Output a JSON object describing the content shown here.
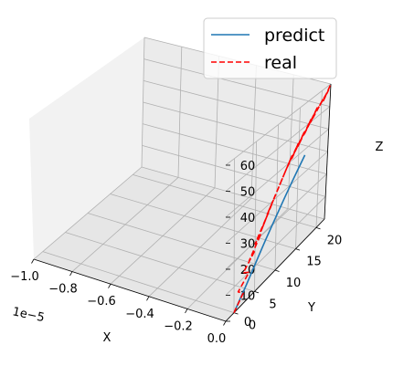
{
  "chart_data": {
    "type": "line",
    "projection": "3d",
    "title": "",
    "xlabel": "X",
    "ylabel": "Y",
    "zlabel": "Z",
    "x_offset_text": "1e−5",
    "xlim": [
      -1.0,
      0.0
    ],
    "ylim": [
      -2,
      22
    ],
    "zlim": [
      0,
      60
    ],
    "xticks": [
      "−1.0",
      "−0.8",
      "−0.6",
      "−0.4",
      "−0.2",
      "0.0"
    ],
    "yticks": [
      "0",
      "5",
      "10",
      "15",
      "20"
    ],
    "zticks": [
      "0",
      "10",
      "20",
      "30",
      "40",
      "50",
      "60"
    ],
    "legend": {
      "position": "upper right"
    },
    "series": [
      {
        "name": "predict",
        "color": "#1f77b4",
        "style": "solid",
        "x": [
          0.0,
          0.0,
          0.0,
          0.0,
          0.0,
          0.0,
          0.0,
          0.0,
          0.0,
          0.0,
          0.0,
          0.0
        ],
        "y": [
          0.0,
          1.5,
          3.0,
          4.5,
          6.0,
          7.5,
          9.0,
          10.5,
          12.0,
          13.5,
          15.0,
          16.5
        ],
        "z": [
          0.0,
          3.0,
          6.0,
          9.5,
          13.0,
          16.5,
          20.0,
          23.5,
          27.0,
          30.5,
          34.0,
          37.5
        ]
      },
      {
        "name": "real",
        "color": "#ff0000",
        "style": "dashed",
        "x": [
          0.0,
          0.0,
          0.0,
          0.0,
          0.0,
          0.0,
          0.0,
          0.0,
          0.0,
          0.0,
          0.0,
          0.0,
          0.0,
          0.0,
          0.0,
          0.0,
          0.0,
          0.0,
          0.0,
          0.0,
          0.0,
          0.0,
          0.0,
          0.0,
          0.0,
          0.0,
          0.0,
          0.0,
          0.0,
          0.0,
          0.0,
          0.0
        ],
        "y": [
          0.0,
          2.2,
          1.0,
          3.6,
          2.2,
          5.0,
          3.6,
          6.4,
          5.0,
          7.8,
          6.4,
          9.2,
          7.8,
          10.6,
          9.2,
          12.0,
          10.6,
          13.4,
          12.0,
          14.8,
          13.4,
          16.2,
          14.8,
          17.6,
          16.2,
          19.0,
          17.6,
          20.4,
          19.0,
          21.5,
          20.4,
          22.0
        ],
        "z": [
          0.0,
          4.0,
          6.5,
          10.0,
          12.0,
          16.5,
          14.5,
          21.0,
          19.0,
          26.0,
          22.0,
          30.0,
          26.5,
          34.0,
          30.0,
          38.0,
          34.0,
          42.0,
          38.0,
          45.0,
          41.0,
          48.0,
          44.0,
          51.0,
          47.0,
          54.0,
          50.0,
          56.0,
          53.0,
          58.0,
          55.0,
          60.0
        ]
      }
    ]
  }
}
